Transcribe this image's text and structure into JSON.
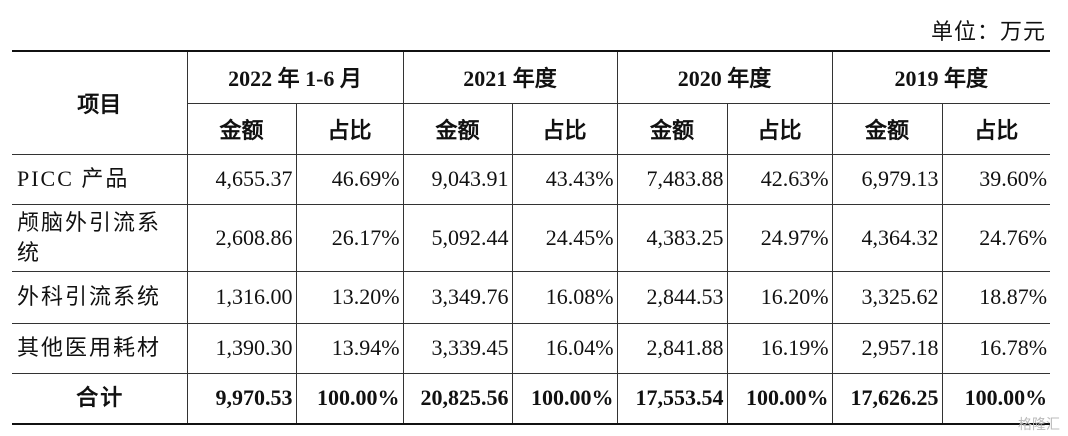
{
  "unit": "单位：万元",
  "header": {
    "item": "项目",
    "periods": [
      "2022 年 1-6 月",
      "2021 年度",
      "2020 年度",
      "2019 年度"
    ],
    "subheaders": [
      "金额",
      "占比",
      "金额",
      "占比",
      "金额",
      "占比",
      "金额",
      "占比"
    ]
  },
  "rows": [
    {
      "label": "PICC 产品",
      "cells": [
        "4,655.37",
        "46.69%",
        "9,043.91",
        "43.43%",
        "7,483.88",
        "42.63%",
        "6,979.13",
        "39.60%"
      ]
    },
    {
      "label": "颅脑外引流系统",
      "cells": [
        "2,608.86",
        "26.17%",
        "5,092.44",
        "24.45%",
        "4,383.25",
        "24.97%",
        "4,364.32",
        "24.76%"
      ]
    },
    {
      "label": "外科引流系统",
      "cells": [
        "1,316.00",
        "13.20%",
        "3,349.76",
        "16.08%",
        "2,844.53",
        "16.20%",
        "3,325.62",
        "18.87%"
      ]
    },
    {
      "label": "其他医用耗材",
      "cells": [
        "1,390.30",
        "13.94%",
        "3,339.45",
        "16.04%",
        "2,841.88",
        "16.19%",
        "2,957.18",
        "16.78%"
      ]
    }
  ],
  "total": {
    "label": "合计",
    "cells": [
      "9,970.53",
      "100.00%",
      "20,825.56",
      "100.00%",
      "17,553.54",
      "100.00%",
      "17,626.25",
      "100.00%"
    ]
  },
  "watermark": "格隆汇"
}
